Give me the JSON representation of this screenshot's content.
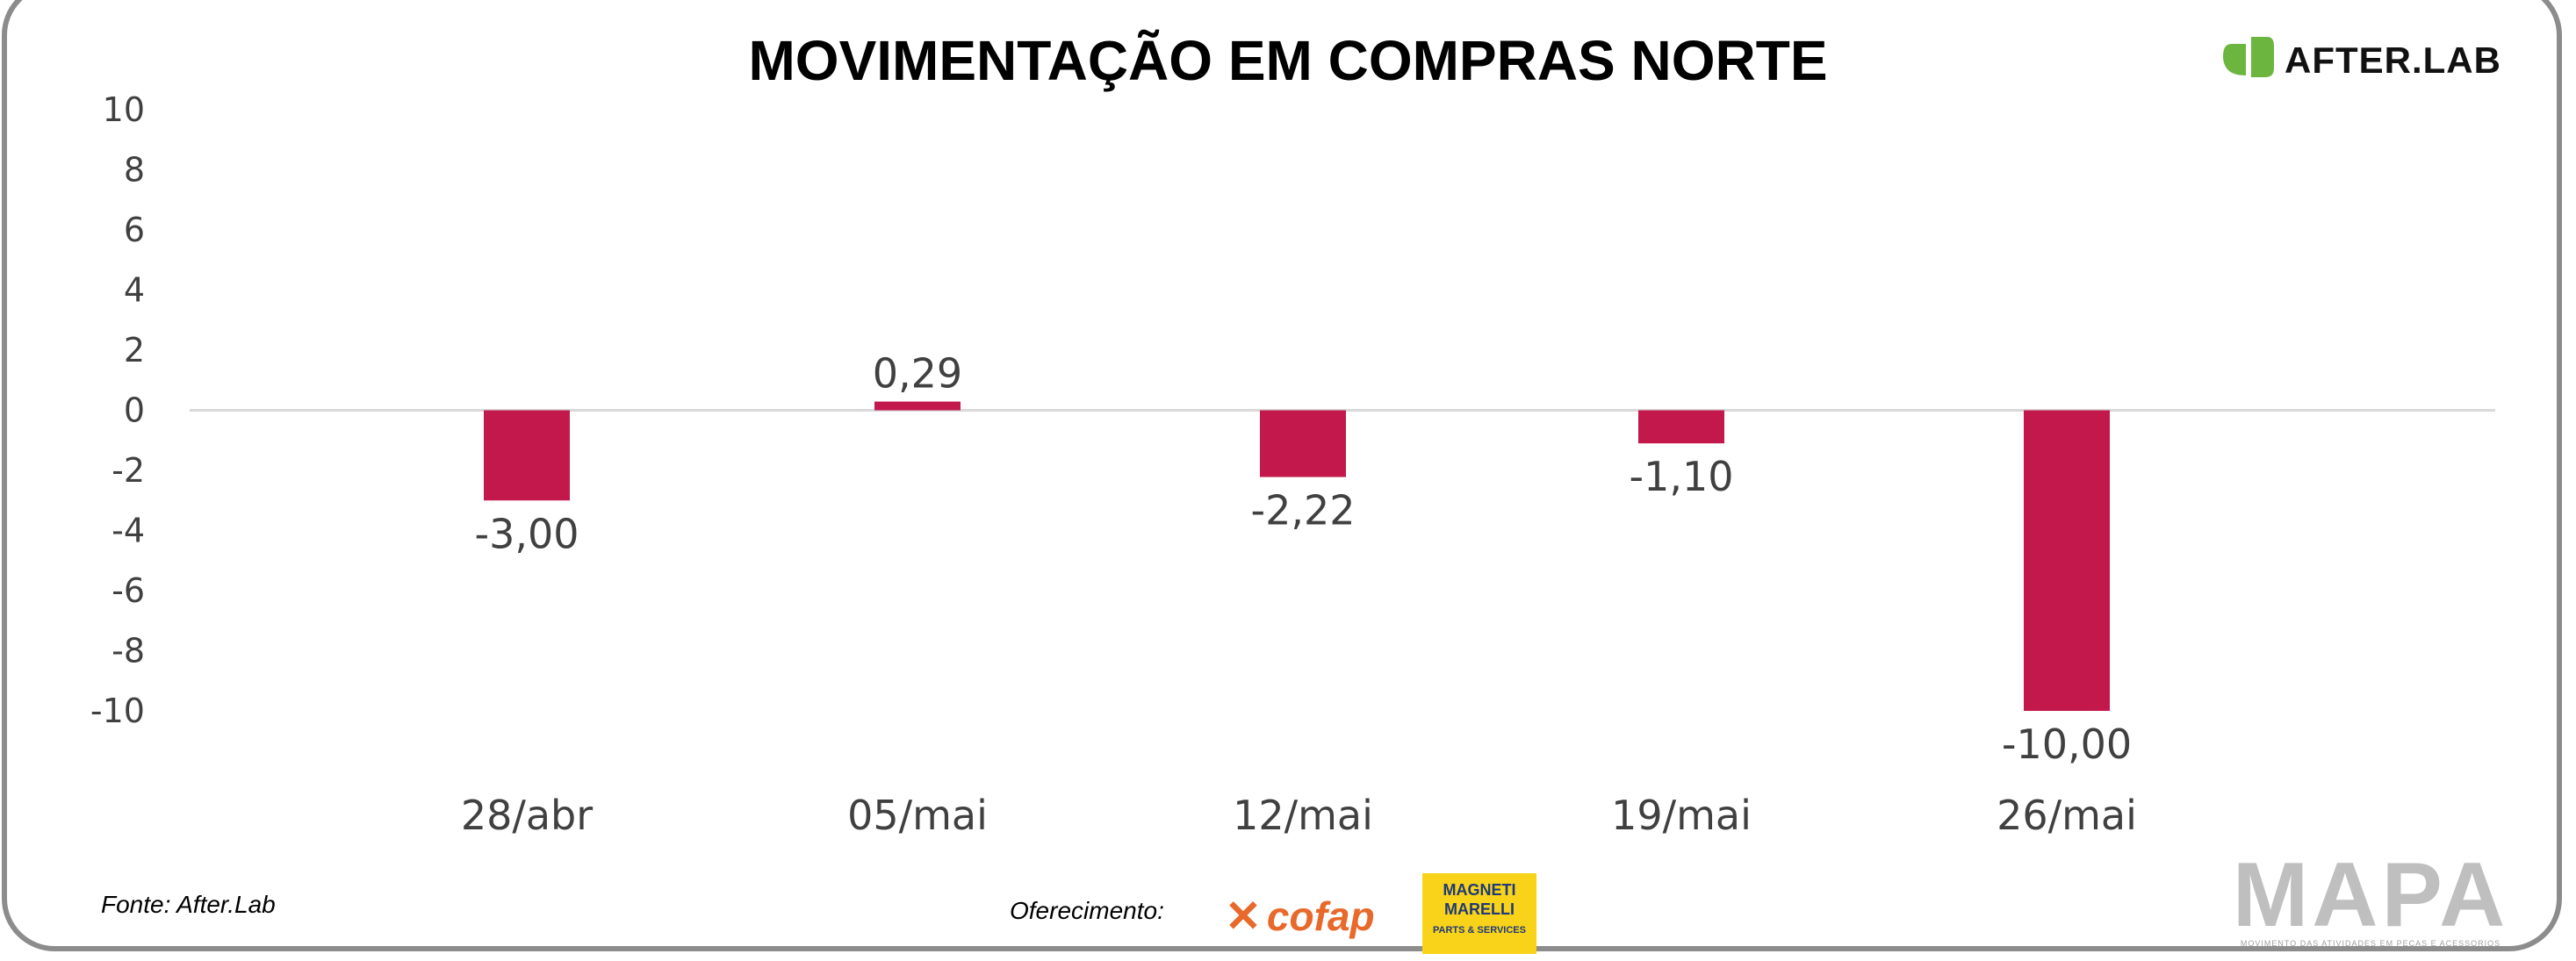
{
  "chart_data": {
    "type": "bar",
    "title": "MOVIMENTAÇÃO EM COMPRAS NORTE",
    "categories": [
      "28/abr",
      "05/mai",
      "12/mai",
      "19/mai",
      "26/mai"
    ],
    "values": [
      -3.0,
      0.29,
      -2.22,
      -1.1,
      -10.0
    ],
    "data_labels": [
      "-3,00",
      "0,29",
      "-2,22",
      "-1,10",
      "-10,00"
    ],
    "ylim": [
      -10,
      10
    ],
    "yticks": [
      10,
      8,
      6,
      4,
      2,
      0,
      -2,
      -4,
      -6,
      -8,
      -10
    ],
    "grid": false,
    "bar_color": "#c2184b",
    "xlabel": "",
    "ylabel": ""
  },
  "footer": {
    "source": "Fonte: After.Lab",
    "offer": "Oferecimento:",
    "sponsors": [
      "cofap",
      "MAGNETI MARELLI",
      "PARTS & SERVICES"
    ]
  },
  "logos": {
    "afterlab": "AFTER.LAB",
    "afterlab_color": "#6cb63f",
    "mapa": "MAPA",
    "mapa_tagline": "MOVIMENTO DAS ATIVIDADES EM PEÇAS E ACESSORIOS"
  }
}
